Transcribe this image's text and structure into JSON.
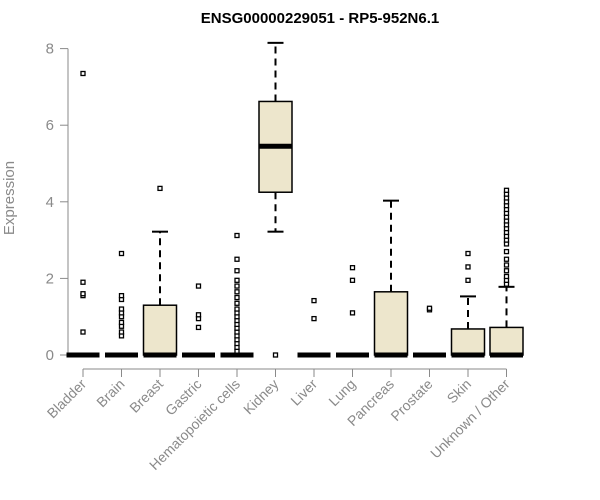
{
  "chart_data": {
    "type": "boxplot",
    "title": "ENSG00000229051 - RP5-952N6.1",
    "xlabel": "",
    "ylabel": "Expression",
    "ylim": [
      0,
      8.2
    ],
    "yticks": [
      0,
      2,
      4,
      6,
      8
    ],
    "grid": false,
    "box_color": "#ede6cc",
    "categories": [
      "Bladder",
      "Brain",
      "Breast",
      "Gastric",
      "Hematopoietic cells",
      "Kidney",
      "Liver",
      "Lung",
      "Pancreas",
      "Prostate",
      "Skin",
      "Unknown / Other"
    ],
    "boxes": [
      {
        "q1": 0,
        "median": 0,
        "q3": 0,
        "whisker_low": 0,
        "whisker_high": 0,
        "outliers": [
          0.6,
          1.55,
          1.6,
          1.9,
          7.35
        ]
      },
      {
        "q1": 0,
        "median": 0,
        "q3": 0,
        "whisker_low": 0,
        "whisker_high": 0,
        "outliers": [
          0.5,
          0.6,
          0.75,
          0.85,
          1.0,
          1.1,
          1.2,
          1.45,
          1.55,
          2.65
        ]
      },
      {
        "q1": 0,
        "median": 0,
        "q3": 1.3,
        "whisker_low": 0,
        "whisker_high": 3.22,
        "outliers": [
          4.35
        ]
      },
      {
        "q1": 0,
        "median": 0,
        "q3": 0,
        "whisker_low": 0,
        "whisker_high": 0,
        "outliers": [
          0.72,
          0.95,
          1.05,
          1.8
        ]
      },
      {
        "q1": 0,
        "median": 0,
        "q3": 0,
        "whisker_low": 0,
        "whisker_high": 0,
        "outliers": [
          0.1,
          0.2,
          0.3,
          0.4,
          0.5,
          0.6,
          0.7,
          0.8,
          0.9,
          1.0,
          1.1,
          1.2,
          1.35,
          1.5,
          1.65,
          1.8,
          1.95,
          2.2,
          2.5,
          3.12
        ]
      },
      {
        "q1": 4.25,
        "median": 5.45,
        "q3": 6.62,
        "whisker_low": 3.22,
        "whisker_high": 8.15,
        "outliers": [
          0.0
        ]
      },
      {
        "q1": 0,
        "median": 0,
        "q3": 0,
        "whisker_low": 0,
        "whisker_high": 0,
        "outliers": [
          0.95,
          1.42
        ]
      },
      {
        "q1": 0,
        "median": 0,
        "q3": 0,
        "whisker_low": 0,
        "whisker_high": 0,
        "outliers": [
          1.1,
          1.95,
          2.28
        ]
      },
      {
        "q1": 0,
        "median": 0,
        "q3": 1.65,
        "whisker_low": 0,
        "whisker_high": 4.03,
        "outliers": []
      },
      {
        "q1": 0,
        "median": 0,
        "q3": 0,
        "whisker_low": 0,
        "whisker_high": 0,
        "outliers": [
          1.18,
          1.22
        ]
      },
      {
        "q1": 0,
        "median": 0,
        "q3": 0.68,
        "whisker_low": 0,
        "whisker_high": 1.53,
        "outliers": [
          1.95,
          2.3,
          2.65
        ]
      },
      {
        "q1": 0,
        "median": 0,
        "q3": 0.72,
        "whisker_low": 0,
        "whisker_high": 1.78,
        "outliers": [
          1.85,
          1.95,
          2.05,
          2.2,
          2.35,
          2.5,
          2.7,
          2.9,
          3.0,
          3.1,
          3.2,
          3.3,
          3.4,
          3.5,
          3.6,
          3.7,
          3.8,
          3.9,
          4.0,
          4.1,
          4.2,
          4.3
        ]
      }
    ]
  }
}
